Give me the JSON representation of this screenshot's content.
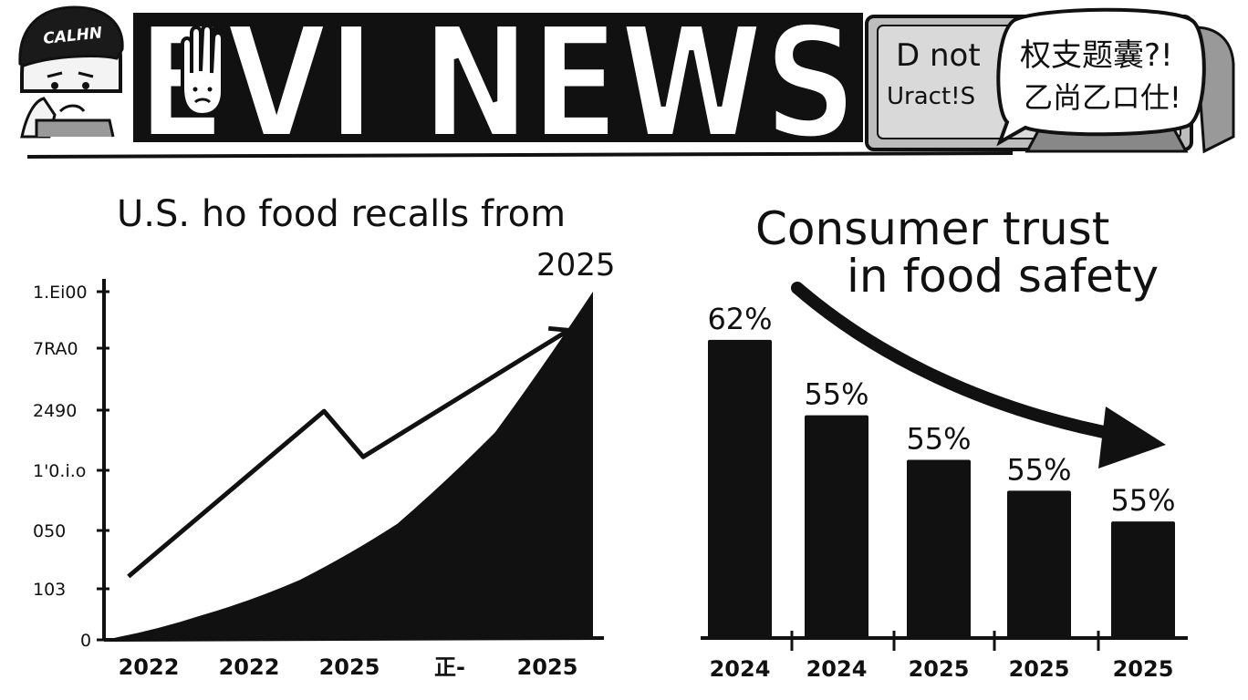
{
  "header": {
    "masthead": "EVI NEWS",
    "cap_text": "CALHN",
    "speech_bubble": {
      "left_lines": [
        "D not",
        "Uract!S"
      ],
      "right_lines": [
        "权支题囊?!",
        "乙尚乙ロ仕!"
      ]
    }
  },
  "colors": {
    "ink": "#111111",
    "paper": "#ffffff",
    "tv_frame": "#bdbdbd",
    "skin": "#f3f3f3"
  },
  "chart_data": [
    {
      "type": "area",
      "title_lines": [
        "U.S. ho food recalls from",
        "2025"
      ],
      "x_tick_labels": [
        "2022",
        "2022",
        "2025",
        "正-",
        "2025"
      ],
      "y_tick_labels": [
        "1.Ei00",
        "7RA0",
        "2490",
        "1'0.i.o",
        "050",
        "103",
        "0"
      ],
      "series": [
        {
          "kind": "line",
          "points": [
            [
              0.05,
              0.18
            ],
            [
              0.45,
              0.65
            ],
            [
              0.53,
              0.52
            ],
            [
              0.95,
              0.88
            ]
          ]
        },
        {
          "kind": "area",
          "points": [
            [
              0.0,
              0.0
            ],
            [
              0.2,
              0.07
            ],
            [
              0.4,
              0.17
            ],
            [
              0.6,
              0.33
            ],
            [
              0.8,
              0.59
            ],
            [
              1.0,
              0.99
            ]
          ]
        }
      ],
      "ylim": [
        0,
        1
      ],
      "grid": false,
      "line_arrow": true
    },
    {
      "type": "bar",
      "title_lines": [
        "Consumer trust",
        "in food safety"
      ],
      "categories": [
        "2024",
        "2024",
        "2025",
        "2025",
        "2025"
      ],
      "values": [
        62,
        55,
        55,
        55,
        55
      ],
      "bar_heights": [
        0.87,
        0.65,
        0.52,
        0.43,
        0.34
      ],
      "value_labels": [
        "62%",
        "55%",
        "55%",
        "55%",
        "55%"
      ],
      "trend_arrow": "down"
    }
  ]
}
